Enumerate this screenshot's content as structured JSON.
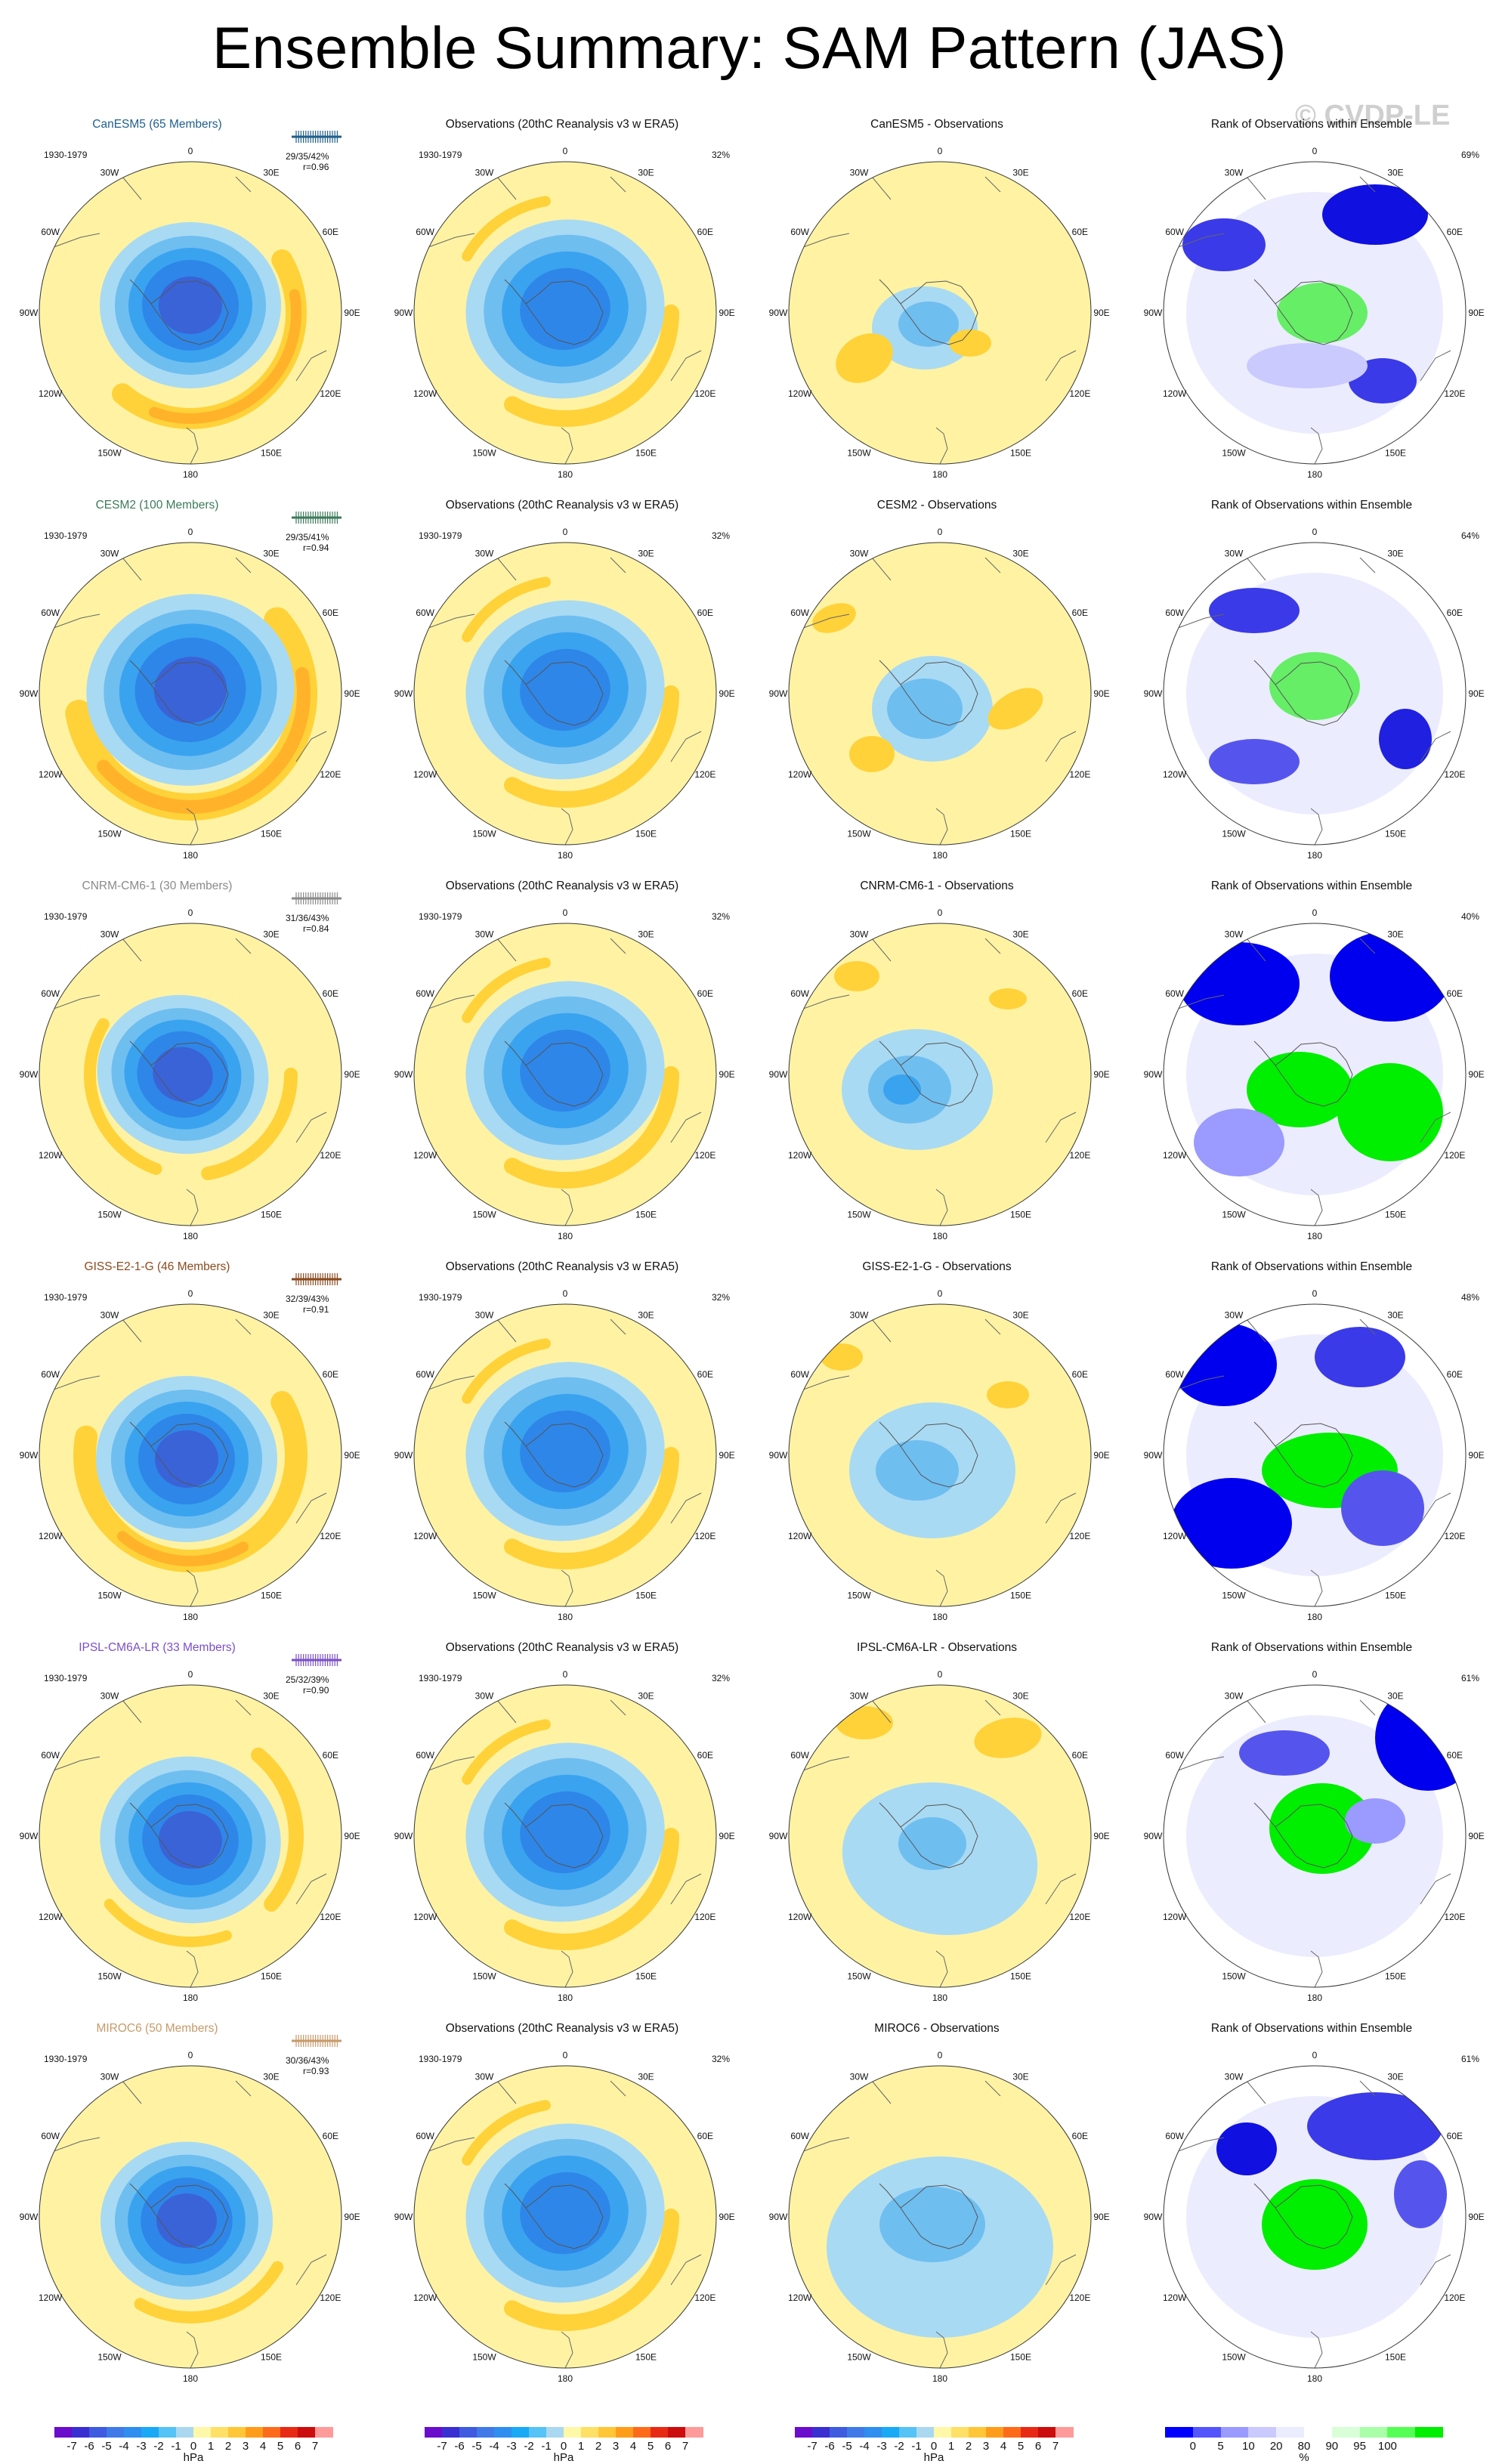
{
  "page": {
    "title": "Ensemble Summary: SAM Pattern (JAS)",
    "watermark": "© CVDP-LE"
  },
  "map_labels": {
    "longitudes": [
      "0",
      "30E",
      "60E",
      "90E",
      "120E",
      "150E",
      "180",
      "150W",
      "120W",
      "90W",
      "60W",
      "30W"
    ]
  },
  "rows": [
    {
      "model": "CanESM5",
      "model_title": "CanESM5 (65 Members)",
      "model_color": "#1f5f8b",
      "period": "1930-1979",
      "stats": "29/35/42%",
      "corr": "r=0.96",
      "obs_title": "Observations (20thC Reanalysis v3 w ERA5)",
      "obs_period": "1930-1979",
      "obs_pct": "32%",
      "diff_title": "CanESM5 - Observations",
      "rank_title": "Rank of Observations within Ensemble",
      "rank_pct": "69%"
    },
    {
      "model": "CESM2",
      "model_title": "CESM2 (100 Members)",
      "model_color": "#3c7a5a",
      "period": "1930-1979",
      "stats": "29/35/41%",
      "corr": "r=0.94",
      "obs_title": "Observations (20thC Reanalysis v3 w ERA5)",
      "obs_period": "1930-1979",
      "obs_pct": "32%",
      "diff_title": "CESM2 - Observations",
      "rank_title": "Rank of Observations within Ensemble",
      "rank_pct": "64%"
    },
    {
      "model": "CNRM-CM6-1",
      "model_title": "CNRM-CM6-1 (30 Members)",
      "model_color": "#8a8a8a",
      "period": "1930-1979",
      "stats": "31/36/43%",
      "corr": "r=0.84",
      "obs_title": "Observations (20thC Reanalysis v3 w ERA5)",
      "obs_period": "1930-1979",
      "obs_pct": "32%",
      "diff_title": "CNRM-CM6-1 - Observations",
      "rank_title": "Rank of Observations within Ensemble",
      "rank_pct": "40%"
    },
    {
      "model": "GISS-E2-1-G",
      "model_title": "GISS-E2-1-G (46 Members)",
      "model_color": "#8b4a1e",
      "period": "1930-1979",
      "stats": "32/39/43%",
      "corr": "r=0.91",
      "obs_title": "Observations (20thC Reanalysis v3 w ERA5)",
      "obs_period": "1930-1979",
      "obs_pct": "32%",
      "diff_title": "GISS-E2-1-G - Observations",
      "rank_title": "Rank of Observations within Ensemble",
      "rank_pct": "48%"
    },
    {
      "model": "IPSL-CM6A-LR",
      "model_title": "IPSL-CM6A-LR (33 Members)",
      "model_color": "#7b4fc9",
      "period": "1930-1979",
      "stats": "25/32/39%",
      "corr": "r=0.90",
      "obs_title": "Observations (20thC Reanalysis v3 w ERA5)",
      "obs_period": "1930-1979",
      "obs_pct": "32%",
      "diff_title": "IPSL-CM6A-LR - Observations",
      "rank_title": "Rank of Observations within Ensemble",
      "rank_pct": "61%"
    },
    {
      "model": "MIROC6",
      "model_title": "MIROC6 (50 Members)",
      "model_color": "#c89a6a",
      "period": "1930-1979",
      "stats": "30/36/43%",
      "corr": "r=0.93",
      "obs_title": "Observations (20thC Reanalysis v3 w ERA5)",
      "obs_period": "1930-1979",
      "obs_pct": "32%",
      "diff_title": "MIROC6 - Observations",
      "rank_title": "Rank of Observations within Ensemble",
      "rank_pct": "61%"
    }
  ],
  "colorbars": {
    "hpa": {
      "ticks": [
        "-7",
        "-6",
        "-5",
        "-4",
        "-3",
        "-2",
        "-1",
        "0",
        "1",
        "2",
        "3",
        "4",
        "5",
        "6",
        "7"
      ],
      "unit": "hPa",
      "colors": [
        "#6a0dcc",
        "#3a2fd0",
        "#3f5be0",
        "#3f7ae8",
        "#2f8ef0",
        "#19a9f5",
        "#55c3f5",
        "#aad8f0",
        "#fff8a8",
        "#ffe066",
        "#ffc637",
        "#ff9d1a",
        "#ff6a1a",
        "#e82a14",
        "#cc0d0d",
        "#ff9a9a"
      ]
    },
    "rank": {
      "ticks": [
        "0",
        "5",
        "10",
        "20",
        "80",
        "90",
        "95",
        "100"
      ],
      "unit": "%",
      "colors": [
        "#0000ff",
        "#5555ff",
        "#9a9aff",
        "#cacaff",
        "#ececff",
        "#ffffff",
        "#d8ffd8",
        "#a8ffa8",
        "#55ff55",
        "#00ee00"
      ]
    }
  }
}
